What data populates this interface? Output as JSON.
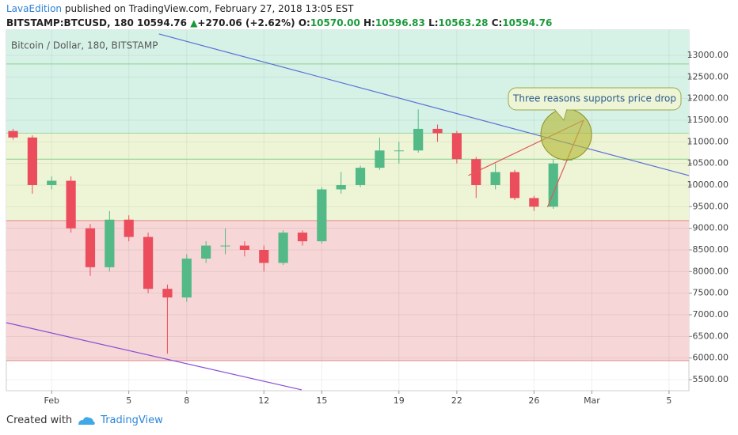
{
  "header": {
    "author": "LavaEdition",
    "published": "published on TradingView.com, February 27, 2018 13:05 EST",
    "symbol": "BITSTAMP:BTCUSD, 180",
    "last": "10594.76",
    "arrow": "▲",
    "change": "+270.06 (+2.62%)",
    "o_label": "O:",
    "o": "10570.00",
    "h_label": "H:",
    "h": "10596.83",
    "l_label": "L:",
    "l": "10563.28",
    "c_label": "C:",
    "c": "10594.76"
  },
  "chart_data": {
    "type": "candlestick",
    "subtitle": "Bitcoin / Dollar, 180, BITSTAMP",
    "x": [
      -1,
      0,
      1,
      2,
      3,
      4,
      5,
      6,
      7,
      8,
      9,
      10,
      11,
      12,
      13,
      14,
      15,
      16,
      17,
      18,
      19,
      20,
      21,
      22,
      23,
      24,
      25,
      26,
      27,
      27.75
    ],
    "open": [
      11250,
      11100,
      10000,
      10100,
      9000,
      8100,
      9200,
      8800,
      7600,
      7400,
      8300,
      8600,
      8600,
      8500,
      8200,
      8900,
      8700,
      9900,
      10000,
      10400,
      10800,
      10800,
      11300,
      11200,
      10600,
      10000,
      10300,
      9700,
      9500,
      10570
    ],
    "high": [
      11300,
      11150,
      10200,
      10200,
      9100,
      9400,
      9300,
      8900,
      7700,
      8400,
      8700,
      9000,
      8700,
      8600,
      8950,
      8950,
      9950,
      10300,
      10450,
      11100,
      11000,
      11750,
      11400,
      11250,
      10650,
      10500,
      10350,
      9750,
      10600,
      10596.83
    ],
    "low": [
      11050,
      9800,
      9900,
      8900,
      7900,
      8000,
      8700,
      7500,
      6100,
      7300,
      8200,
      8400,
      8350,
      8000,
      8150,
      8600,
      8650,
      9800,
      9950,
      10350,
      10500,
      10750,
      11000,
      10500,
      9700,
      9900,
      9650,
      9400,
      9450,
      10563.28
    ],
    "close": [
      11100,
      10000,
      10100,
      9000,
      8100,
      9200,
      8800,
      7600,
      7400,
      8300,
      8600,
      8600,
      8500,
      8200,
      8900,
      8700,
      9900,
      10000,
      10400,
      10800,
      10800,
      11300,
      11200,
      10600,
      10000,
      10300,
      9700,
      9500,
      10500,
      10594.76
    ],
    "up_color": "#53b987",
    "down_color": "#eb4d5c",
    "xlim": [
      -1.35,
      34.03
    ],
    "xticks": [
      {
        "value": 1,
        "label": "Feb"
      },
      5,
      8,
      12,
      15,
      19,
      22,
      26,
      {
        "value": 29,
        "label": "Mar"
      },
      {
        "value": 33,
        "label": "5"
      }
    ],
    "ylim": [
      5244,
      13585
    ],
    "yticks": [
      {
        "value": 5500,
        "label": "5500.00"
      },
      {
        "value": 6000,
        "label": "6000.00"
      },
      {
        "value": 6500,
        "label": "6500.00"
      },
      {
        "value": 7000,
        "label": "7000.00"
      },
      {
        "value": 7500,
        "label": "7500.00"
      },
      {
        "value": 8000,
        "label": "8000.00"
      },
      {
        "value": 8500,
        "label": "8500.00"
      },
      {
        "value": 9000,
        "label": "9000.00"
      },
      {
        "value": 9500,
        "label": "9500.00"
      },
      {
        "value": 10000,
        "label": "10000.00"
      },
      {
        "value": 10500,
        "label": "10500.00"
      },
      {
        "value": 11000,
        "label": "11000.00"
      },
      {
        "value": 11500,
        "label": "11500.00"
      },
      {
        "value": 12000,
        "label": "12000.00"
      },
      {
        "value": 12500,
        "label": "12500.00"
      },
      {
        "value": 13000,
        "label": "13000.00"
      }
    ],
    "grid": true,
    "zones": [
      {
        "low": 11200,
        "high": 13585,
        "color": "#d6f2e7"
      },
      {
        "low": 9180,
        "high": 11200,
        "color": "#eef5d6"
      },
      {
        "low": 5940,
        "high": 9180,
        "color": "#f6d6d6"
      }
    ],
    "levels": [
      {
        "value": 12800,
        "color": "#8ccf8c"
      },
      {
        "value": 11200,
        "color": "#9fd39f"
      },
      {
        "value": 10600,
        "color": "#8ccf8c"
      },
      {
        "value": 9180,
        "color": "#e08a8a"
      },
      {
        "value": 5940,
        "color": "#e08a8a"
      }
    ],
    "trendlines": [
      {
        "x": [
          6.56,
          34.03
        ],
        "y": [
          13494,
          10220
        ],
        "color": "#5b6fd6"
      },
      {
        "x": [
          -1.35,
          13.96
        ],
        "y": [
          6817,
          5263
        ],
        "color": "#8a4fd6"
      },
      {
        "x": [
          22.6,
          28.57
        ],
        "y": [
          10220,
          11500
        ],
        "color": "#e05a5a"
      },
      {
        "x": [
          26.7,
          28.57
        ],
        "y": [
          9490,
          11500
        ],
        "color": "#e05a5a"
      }
    ],
    "highlight": {
      "x": 27.67,
      "y": 11170,
      "color": "#b5b93a"
    },
    "annotation": "Three reasons supports price drop"
  },
  "footer": {
    "created": "Created with",
    "brand": "TradingView"
  }
}
